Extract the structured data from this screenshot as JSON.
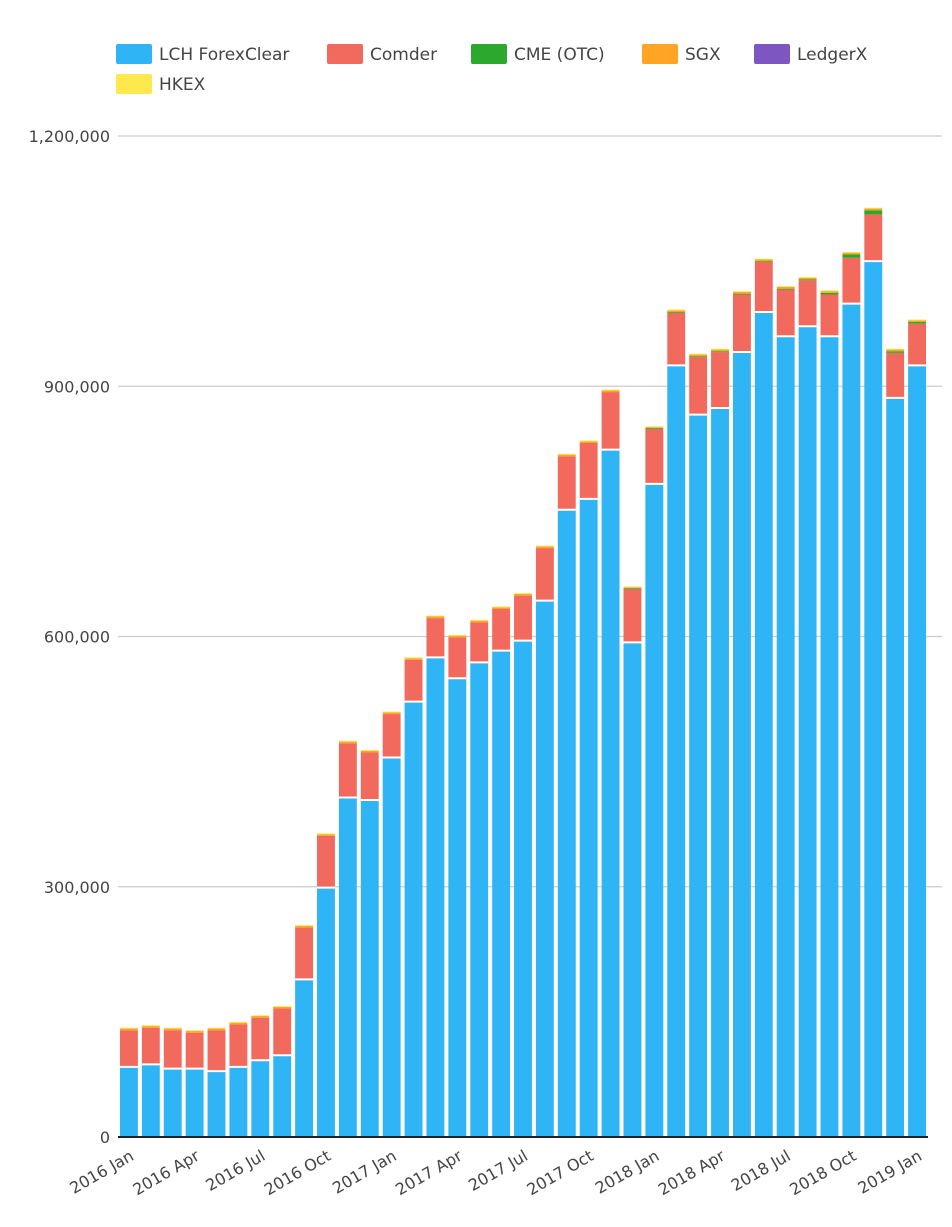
{
  "chart_data": {
    "type": "bar",
    "stacked": true,
    "title": "",
    "xlabel": "",
    "ylabel": "",
    "ylim": [
      0,
      1200000
    ],
    "grid": true,
    "legend_position": "top",
    "y_ticks": [
      {
        "value": 0,
        "label": "0"
      },
      {
        "value": 300000,
        "label": "300,000"
      },
      {
        "value": 600000,
        "label": "600,000"
      },
      {
        "value": 900000,
        "label": "900,000"
      },
      {
        "value": 1200000,
        "label": "1,200,000"
      }
    ],
    "x_tick_labels": [
      {
        "index": 0,
        "label": "2016 Jan"
      },
      {
        "index": 3,
        "label": "2016 Apr"
      },
      {
        "index": 6,
        "label": "2016 Jul"
      },
      {
        "index": 9,
        "label": "2016 Oct"
      },
      {
        "index": 12,
        "label": "2017 Jan"
      },
      {
        "index": 15,
        "label": "2017 Apr"
      },
      {
        "index": 18,
        "label": "2017 Jul"
      },
      {
        "index": 21,
        "label": "2017 Oct"
      },
      {
        "index": 24,
        "label": "2018 Jan"
      },
      {
        "index": 27,
        "label": "2018 Apr"
      },
      {
        "index": 30,
        "label": "2018 Jul"
      },
      {
        "index": 33,
        "label": "2018 Oct"
      },
      {
        "index": 36,
        "label": "2019 Jan"
      }
    ],
    "categories": [
      "2016-01",
      "2016-02",
      "2016-03",
      "2016-04",
      "2016-05",
      "2016-06",
      "2016-07",
      "2016-08",
      "2016-09",
      "2016-10",
      "2016-11",
      "2016-12",
      "2017-01",
      "2017-02",
      "2017-03",
      "2017-04",
      "2017-05",
      "2017-06",
      "2017-07",
      "2017-08",
      "2017-09",
      "2017-10",
      "2017-11",
      "2017-12",
      "2018-01",
      "2018-02",
      "2018-03",
      "2018-04",
      "2018-05",
      "2018-06",
      "2018-07",
      "2018-08",
      "2018-09",
      "2018-10",
      "2018-11",
      "2018-12",
      "2019-01"
    ],
    "series": [
      {
        "name": "LCH ForexClear",
        "color": "#2fb4f5",
        "values": [
          84000,
          87000,
          82000,
          82000,
          79000,
          84000,
          92000,
          98000,
          189000,
          299000,
          407000,
          404000,
          455000,
          522000,
          575000,
          550000,
          569000,
          583000,
          595000,
          643000,
          752000,
          765000,
          824000,
          593000,
          783000,
          925000,
          866000,
          874000,
          941000,
          989000,
          960000,
          972000,
          960000,
          999000,
          1050000,
          886000,
          925000
        ]
      },
      {
        "name": "Comder",
        "color": "#f26a5d",
        "values": [
          44000,
          44000,
          46000,
          43000,
          49000,
          51000,
          51000,
          56000,
          62000,
          62000,
          65000,
          57000,
          52000,
          50000,
          47000,
          49000,
          48000,
          50000,
          54000,
          63000,
          64000,
          67000,
          69000,
          64000,
          66000,
          63000,
          69000,
          67000,
          69000,
          60000,
          56000,
          55000,
          50000,
          55000,
          56000,
          54000,
          50000
        ]
      },
      {
        "name": "CME (OTC)",
        "color": "#2ca82c",
        "values": [
          0,
          0,
          0,
          0,
          0,
          0,
          0,
          0,
          0,
          0,
          0,
          0,
          0,
          0,
          0,
          0,
          0,
          0,
          0,
          0,
          0,
          0,
          0,
          1000,
          1000,
          1000,
          1000,
          1000,
          1000,
          1000,
          1000,
          1000,
          2000,
          4000,
          5000,
          2000,
          2000
        ]
      },
      {
        "name": "SGX",
        "color": "#ffa424",
        "values": [
          2000,
          2000,
          2000,
          2000,
          2000,
          2000,
          2000,
          2000,
          2000,
          2000,
          2000,
          2000,
          2000,
          2000,
          2000,
          2000,
          2000,
          2000,
          2000,
          2000,
          2000,
          2000,
          2000,
          1000,
          1000,
          2000,
          2000,
          2000,
          2000,
          2000,
          2000,
          2000,
          2000,
          2000,
          2000,
          2000,
          2000
        ]
      },
      {
        "name": "LedgerX",
        "color": "#7d56c2",
        "values": [
          0,
          0,
          0,
          0,
          0,
          0,
          0,
          0,
          0,
          0,
          0,
          0,
          0,
          0,
          0,
          0,
          0,
          0,
          0,
          0,
          0,
          0,
          0,
          0,
          0,
          0,
          0,
          0,
          0,
          0,
          0,
          0,
          0,
          0,
          0,
          0,
          0
        ]
      },
      {
        "name": "HKEX",
        "color": "#fde94e",
        "values": [
          1000,
          1000,
          1000,
          1000,
          1000,
          1000,
          1000,
          1000,
          1000,
          1000,
          1000,
          1000,
          1000,
          1000,
          1000,
          1000,
          1000,
          1000,
          1000,
          1000,
          1000,
          1000,
          1000,
          1000,
          1000,
          1000,
          1000,
          1000,
          1000,
          1000,
          1000,
          1000,
          1000,
          1000,
          1000,
          1000,
          1000
        ]
      }
    ]
  }
}
